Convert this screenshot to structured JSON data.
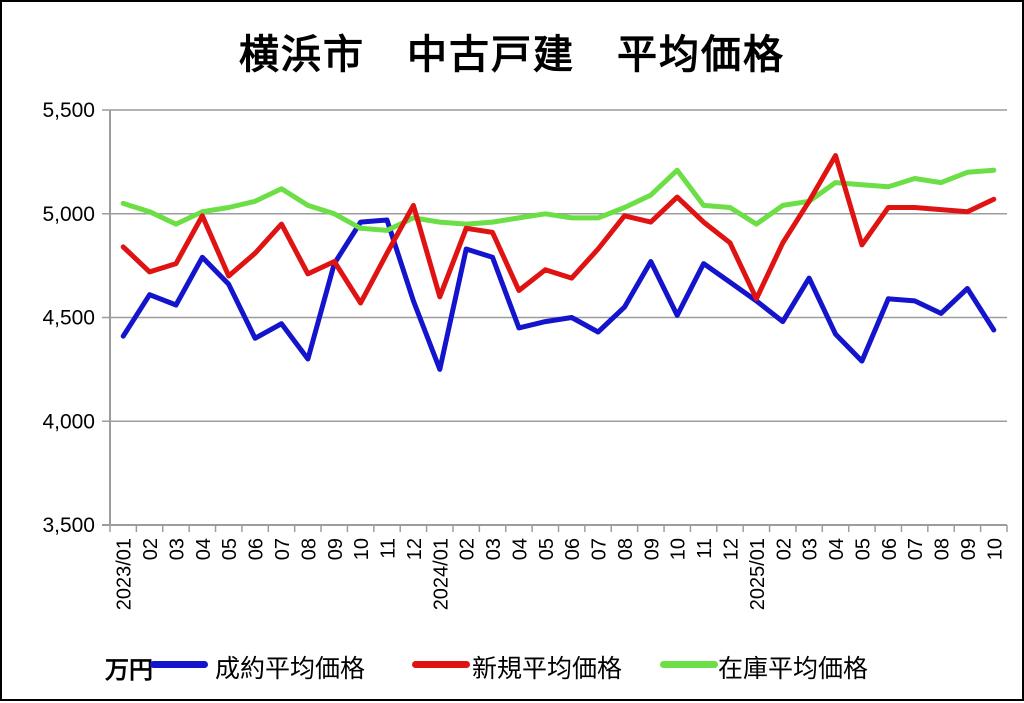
{
  "title": "横浜市　中古戸建　平均価格",
  "unit_label": "万円",
  "legend": [
    {
      "label": "成約平均価格",
      "color": "#1414CC"
    },
    {
      "label": "新規平均価格",
      "color": "#E01313"
    },
    {
      "label": "在庫平均価格",
      "color": "#6CDE46"
    }
  ],
  "colors": {
    "grid": "#9C9C9C",
    "axis": "#9C9C9C",
    "text": "#000000"
  },
  "chart_data": {
    "type": "line",
    "title": "横浜市　中古戸建　平均価格",
    "xlabel": "",
    "ylabel": "万円",
    "ylim": [
      3500,
      5500
    ],
    "grid": true,
    "legend_position": "bottom",
    "y_ticks": [
      {
        "value": 5500,
        "label": "5,500"
      },
      {
        "value": 5000,
        "label": "5,000"
      },
      {
        "value": 4500,
        "label": "4,500"
      },
      {
        "value": 4000,
        "label": "4,000"
      },
      {
        "value": 3500,
        "label": "3,500"
      }
    ],
    "categories": [
      "2023/01",
      "02",
      "03",
      "04",
      "05",
      "06",
      "07",
      "08",
      "09",
      "10",
      "11",
      "12",
      "2024/01",
      "02",
      "03",
      "04",
      "05",
      "06",
      "07",
      "08",
      "09",
      "10",
      "11",
      "12",
      "2025/01",
      "02",
      "03",
      "04",
      "05",
      "06",
      "07",
      "08",
      "09",
      "10"
    ],
    "series": [
      {
        "name": "成約平均価格",
        "color": "#1414CC",
        "values": [
          4410,
          4610,
          4560,
          4790,
          4660,
          4400,
          4470,
          4300,
          4760,
          4960,
          4970,
          4580,
          4250,
          4830,
          4790,
          4450,
          4480,
          4500,
          4430,
          4550,
          4770,
          4510,
          4760,
          4670,
          4580,
          4480,
          4690,
          4420,
          4290,
          4590,
          4580,
          4520,
          4640,
          4440
        ]
      },
      {
        "name": "新規平均価格",
        "color": "#E01313",
        "values": [
          4840,
          4720,
          4760,
          4990,
          4700,
          4810,
          4950,
          4710,
          4770,
          4570,
          4810,
          5040,
          4600,
          4930,
          4910,
          4630,
          4730,
          4690,
          4830,
          4990,
          4960,
          5080,
          4960,
          4860,
          4590,
          4860,
          5060,
          5280,
          4850,
          5030,
          5030,
          5020,
          5010,
          5070
        ]
      },
      {
        "name": "在庫平均価格",
        "color": "#6CDE46",
        "values": [
          5050,
          5010,
          4950,
          5010,
          5030,
          5060,
          5120,
          5040,
          5000,
          4930,
          4920,
          4980,
          4960,
          4950,
          4960,
          4980,
          5000,
          4980,
          4980,
          5030,
          5090,
          5210,
          5040,
          5030,
          4950,
          5040,
          5060,
          5150,
          5140,
          5130,
          5170,
          5150,
          5200,
          5210
        ]
      }
    ],
    "z_order": [
      0,
      2,
      1
    ]
  }
}
